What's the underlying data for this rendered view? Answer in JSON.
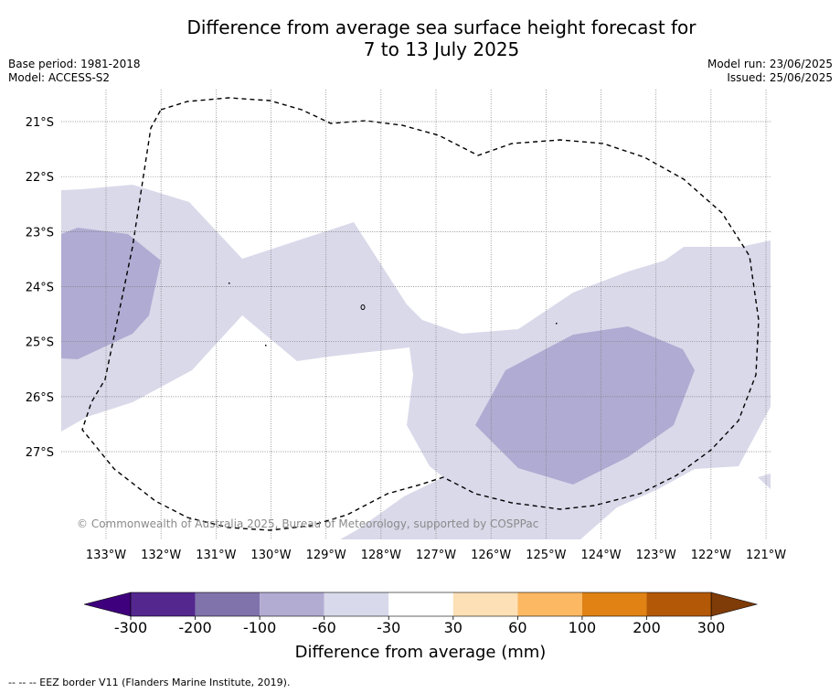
{
  "title": {
    "line1": "Difference from average sea surface height forecast for",
    "line2": "7 to 13 July 2025"
  },
  "info_left": {
    "base_period": "Base period: 1981-2018",
    "model": "Model: ACCESS-S2"
  },
  "info_right": {
    "model_run": "Model run: 23/06/2025",
    "issued": "Issued: 25/06/2025"
  },
  "map": {
    "lat_labels": [
      "21°S",
      "22°S",
      "23°S",
      "24°S",
      "25°S",
      "26°S",
      "27°S"
    ],
    "lon_labels": [
      "133°W",
      "132°W",
      "131°W",
      "130°W",
      "129°W",
      "128°W",
      "127°W",
      "126°W",
      "125°W",
      "124°W",
      "123°W",
      "122°W",
      "121°W"
    ],
    "copyright": "© Commonwealth of Australia 2025, Bureau of Meteorology, supported by COSPPac",
    "colors": {
      "light_purple": "#d9d9ea",
      "mid_purple": "#b0abd2",
      "eez_line": "#000000",
      "grid": "#777777"
    }
  },
  "colorbar": {
    "label": "Difference from average (mm)",
    "ticks": [
      "-300",
      "-200",
      "-100",
      "-60",
      "-30",
      "30",
      "60",
      "100",
      "200",
      "300"
    ],
    "colors": [
      "#3f007d",
      "#54278f",
      "#8073ac",
      "#b2abd2",
      "#d8daeb",
      "#ffffff",
      "#fee0b6",
      "#fdb863",
      "#e08214",
      "#b35806",
      "#7f3b08"
    ]
  },
  "footnote": "--  --  -- EEZ border V11 (Flanders Marine Institute, 2019)."
}
